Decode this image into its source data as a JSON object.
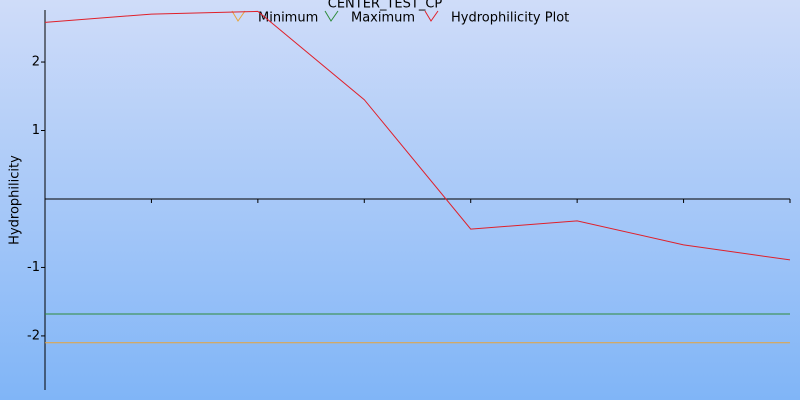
{
  "chart_data": {
    "type": "line",
    "title": "CENTER_TEST_CP",
    "y_label": "Hydrophilicity",
    "categories": [
      null,
      null,
      null,
      null,
      null,
      null,
      null,
      null
    ],
    "series": [
      {
        "name": "Minimum",
        "color": "#e8a33a",
        "values": [
          -2.1,
          -2.1,
          -2.1,
          -2.1,
          -2.1,
          -2.1,
          -2.1,
          -2.1
        ]
      },
      {
        "name": "Maximum",
        "color": "#2e8b3a",
        "values": [
          -1.68,
          -1.68,
          -1.68,
          -1.68,
          -1.68,
          -1.68,
          -1.68,
          -1.68
        ]
      },
      {
        "name": "Hydrophilicity Plot",
        "color": "#e0202a",
        "values": [
          2.58,
          2.7,
          2.74,
          1.45,
          -0.44,
          -0.32,
          -0.67,
          -0.89
        ]
      }
    ],
    "ylim": [
      -2.79,
      2.76
    ],
    "yticks": [
      -2,
      -1,
      1,
      2
    ],
    "grid": false
  }
}
